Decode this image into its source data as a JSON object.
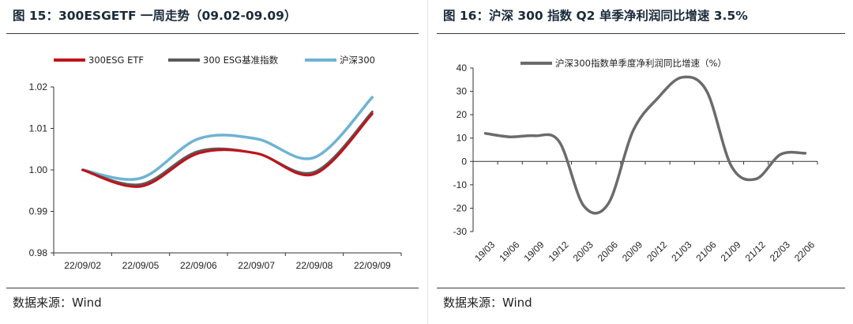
{
  "left_panel": {
    "title": "图 15：300ESGETF 一周走势（09.02-09.09）",
    "source": "数据来源：Wind"
  },
  "right_panel": {
    "title": "图 16：沪深 300 指数 Q2 单季净利润同比增速 3.5%",
    "source": "数据来源：Wind"
  },
  "chart_data": [
    {
      "type": "line",
      "title": "图 15：300ESGETF 一周走势（09.02-09.09）",
      "categories": [
        "22/09/02",
        "22/09/05",
        "22/09/06",
        "22/09/07",
        "22/09/08",
        "22/09/09"
      ],
      "series": [
        {
          "name": "300ESG ETF",
          "color": "#c0121b",
          "values": [
            1.0,
            0.996,
            1.004,
            1.004,
            0.999,
            1.0135
          ]
        },
        {
          "name": "300 ESG基准指数",
          "color": "#5a5a5a",
          "values": [
            1.0,
            0.9965,
            1.0045,
            1.004,
            0.9995,
            1.014
          ]
        },
        {
          "name": "沪深300",
          "color": "#6fb3d2",
          "values": [
            1.0,
            0.998,
            1.0075,
            1.0075,
            1.003,
            1.0175
          ]
        }
      ],
      "yticks": [
        "0.98",
        "0.99",
        "1.00",
        "1.01",
        "1.02"
      ],
      "ylim": [
        0.98,
        1.02
      ],
      "legend_position": "top",
      "grid": false
    },
    {
      "type": "line",
      "categories": [
        "19/03",
        "19/06",
        "19/09",
        "19/12",
        "20/03",
        "20/06",
        "20/09",
        "20/12",
        "21/03",
        "21/06",
        "21/09",
        "21/12",
        "22/03",
        "22/06"
      ],
      "series": [
        {
          "name": "沪深300指数单季度净利润同比增速（%）",
          "color": "#6b6b6b",
          "values": [
            12,
            10.5,
            11,
            8.5,
            -19,
            -18,
            13,
            27,
            36,
            30,
            -2,
            -7.5,
            3,
            3.5
          ]
        }
      ],
      "yticks": [
        "40",
        "30",
        "20",
        "10",
        "0",
        "-10",
        "-20",
        "-30"
      ],
      "ylim": [
        -30,
        40
      ],
      "legend_position": "top",
      "grid": false
    }
  ]
}
